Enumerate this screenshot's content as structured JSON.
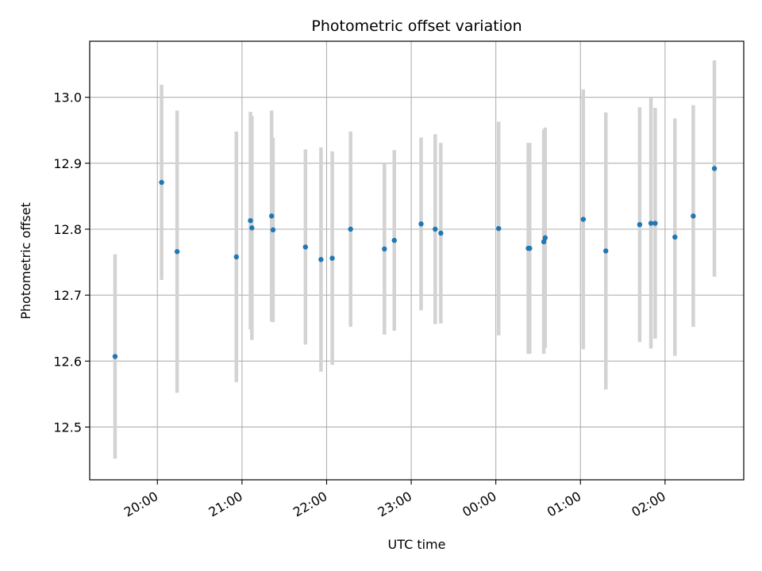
{
  "chart_data": {
    "type": "scatter",
    "title": "Photometric offset variation",
    "xlabel": "UTC time",
    "ylabel": "Photometric offset",
    "x_ticks": [
      "20:00",
      "21:00",
      "22:00",
      "23:00",
      "00:00",
      "01:00",
      "02:00"
    ],
    "y_ticks": [
      12.5,
      12.6,
      12.7,
      12.8,
      12.9,
      13.0
    ],
    "xlim_hours": [
      19.2,
      26.93
    ],
    "ylim": [
      12.42,
      13.085
    ],
    "grid": true,
    "colors": {
      "point": "#1f77b4",
      "errorbar": "#d3d3d3",
      "grid": "#b0b0b0"
    },
    "series": [
      {
        "points": [
          {
            "t": "19:30",
            "y": 12.607,
            "err": 0.155
          },
          {
            "t": "20:03",
            "y": 12.871,
            "err": 0.148
          },
          {
            "t": "20:14",
            "y": 12.766,
            "err": 0.214
          },
          {
            "t": "20:56",
            "y": 12.758,
            "err": 0.19
          },
          {
            "t": "21:06",
            "y": 12.813,
            "err": 0.165
          },
          {
            "t": "21:07",
            "y": 12.802,
            "err": 0.17
          },
          {
            "t": "21:21",
            "y": 12.82,
            "err": 0.16
          },
          {
            "t": "21:22",
            "y": 12.799,
            "err": 0.14
          },
          {
            "t": "21:45",
            "y": 12.773,
            "err": 0.148
          },
          {
            "t": "21:56",
            "y": 12.754,
            "err": 0.17
          },
          {
            "t": "22:04",
            "y": 12.756,
            "err": 0.162
          },
          {
            "t": "22:17",
            "y": 12.8,
            "err": 0.148
          },
          {
            "t": "22:41",
            "y": 12.77,
            "err": 0.13
          },
          {
            "t": "22:48",
            "y": 12.783,
            "err": 0.137
          },
          {
            "t": "23:07",
            "y": 12.808,
            "err": 0.131
          },
          {
            "t": "23:17",
            "y": 12.8,
            "err": 0.144
          },
          {
            "t": "23:21",
            "y": 12.794,
            "err": 0.137
          },
          {
            "t": "00:02",
            "y": 12.801,
            "err": 0.162
          },
          {
            "t": "00:23",
            "y": 12.771,
            "err": 0.16
          },
          {
            "t": "00:24",
            "y": 12.771,
            "err": 0.16
          },
          {
            "t": "00:34",
            "y": 12.781,
            "err": 0.17
          },
          {
            "t": "00:35",
            "y": 12.787,
            "err": 0.167
          },
          {
            "t": "01:02",
            "y": 12.815,
            "err": 0.197
          },
          {
            "t": "01:18",
            "y": 12.767,
            "err": 0.21
          },
          {
            "t": "01:42",
            "y": 12.807,
            "err": 0.178
          },
          {
            "t": "01:50",
            "y": 12.809,
            "err": 0.19
          },
          {
            "t": "01:53",
            "y": 12.809,
            "err": 0.175
          },
          {
            "t": "02:07",
            "y": 12.788,
            "err": 0.18
          },
          {
            "t": "02:20",
            "y": 12.82,
            "err": 0.168
          },
          {
            "t": "02:35",
            "y": 12.892,
            "err": 0.164
          }
        ]
      }
    ]
  }
}
